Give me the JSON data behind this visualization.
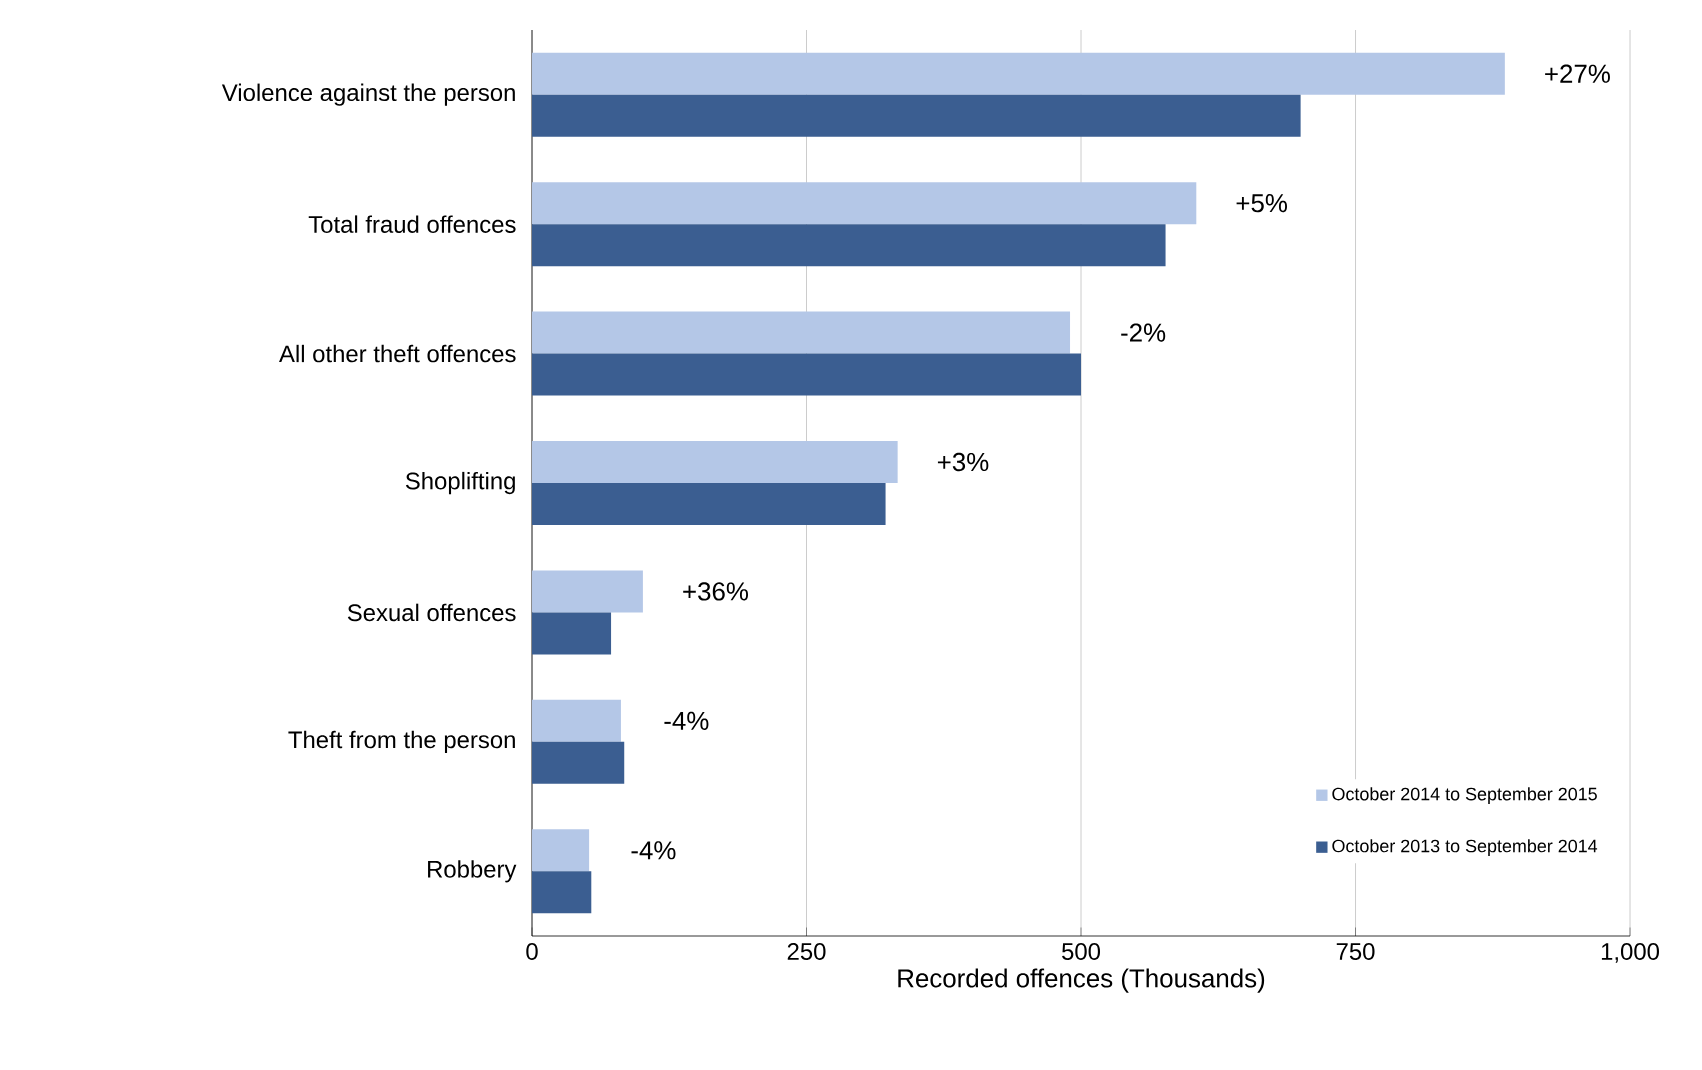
{
  "chart_data": {
    "type": "bar",
    "orientation": "horizontal",
    "xlabel": "Recorded offences (Thousands)",
    "categories": [
      "Violence against the person",
      "Total fraud offences",
      "All other theft offences",
      "Shoplifting",
      "Sexual offences",
      "Theft from the person",
      "Robbery"
    ],
    "series": [
      {
        "name": "October 2014 to September 2015",
        "color": "#b4c7e7",
        "values": [
          886,
          605,
          490,
          333,
          101,
          81,
          52
        ]
      },
      {
        "name": "October 2013 to September 2014",
        "color": "#3b5e91",
        "values": [
          700,
          577,
          500,
          322,
          72,
          84,
          54
        ]
      }
    ],
    "annotations": [
      {
        "text": "+27%",
        "x": 886,
        "y": "Violence against the person"
      },
      {
        "text": "+5%",
        "x": 605,
        "y": "Total fraud offences"
      },
      {
        "text": "-2%",
        "x": 500,
        "y": "All other theft offences"
      },
      {
        "text": "+3%",
        "x": 333,
        "y": "Shoplifting"
      },
      {
        "text": "+36%",
        "x": 101,
        "y": "Sexual offences"
      },
      {
        "text": "-4%",
        "x": 84,
        "y": "Theft from the person"
      },
      {
        "text": "-4%",
        "x": 54,
        "y": "Robbery"
      }
    ],
    "xlim": [
      0,
      1000
    ],
    "xticks": [
      0,
      250,
      500,
      750,
      {
        "value": 1000,
        "label": "1,000"
      }
    ],
    "grid": "x",
    "legend": "bottom right"
  }
}
